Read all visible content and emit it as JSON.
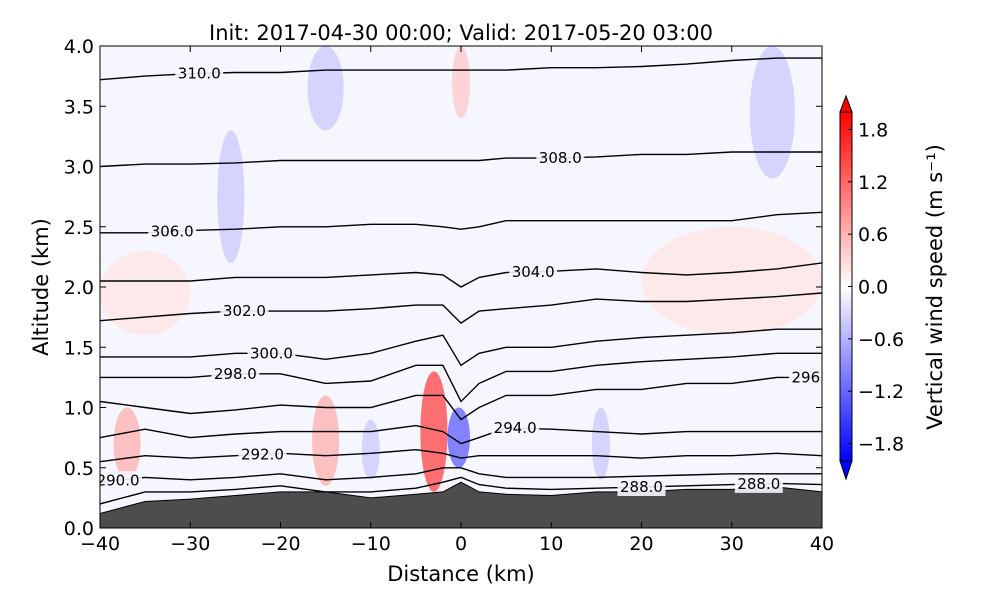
{
  "chart_data": {
    "type": "cross-section",
    "title": "Init: 2017-04-30 00:00; Valid: 2017-05-20 03:00",
    "x_label": "Distance (km)",
    "y_label": "Altitude (km)",
    "colorbar_label": "Vertical wind speed (m s⁻¹)",
    "xlim": [
      -40,
      40
    ],
    "ylim": [
      0,
      4
    ],
    "xticks": [
      {
        "value": -40,
        "label": "−40"
      },
      {
        "value": -30,
        "label": "−30"
      },
      {
        "value": -20,
        "label": "−20"
      },
      {
        "value": -10,
        "label": "−10"
      },
      0,
      10,
      20,
      30,
      40
    ],
    "yticks": [
      {
        "value": 0,
        "label": "0.0"
      },
      {
        "value": 0.5,
        "label": "0.5"
      },
      {
        "value": 1,
        "label": "1.0"
      },
      {
        "value": 1.5,
        "label": "1.5"
      },
      {
        "value": 2,
        "label": "2.0"
      },
      {
        "value": 2.5,
        "label": "2.5"
      },
      {
        "value": 3,
        "label": "3.0"
      },
      {
        "value": 3.5,
        "label": "3.5"
      },
      {
        "value": 4,
        "label": "4.0"
      }
    ],
    "clim": [
      -2,
      2
    ],
    "cticks": [
      {
        "value": 1.8,
        "label": "1.8"
      },
      {
        "value": 1.2,
        "label": "1.2"
      },
      {
        "value": 0.6,
        "label": "0.6"
      },
      {
        "value": 0,
        "label": "0.0"
      },
      {
        "value": -0.6,
        "label": "−0.6"
      },
      {
        "value": -1.2,
        "label": "−1.2"
      },
      {
        "value": -1.8,
        "label": "−1.8"
      }
    ],
    "x": [
      -40,
      -35,
      -30,
      -25,
      -20,
      -15,
      -10,
      -5,
      -2,
      0,
      2,
      5,
      10,
      15,
      20,
      25,
      30,
      35,
      40
    ],
    "terrain": {
      "color": "#4d4d4d",
      "values": [
        0.12,
        0.22,
        0.24,
        0.27,
        0.3,
        0.3,
        0.25,
        0.28,
        0.3,
        0.38,
        0.3,
        0.28,
        0.27,
        0.3,
        0.3,
        0.32,
        0.32,
        0.34,
        0.3
      ]
    },
    "isentropes": [
      {
        "level": {
          "value": 288,
          "label": "288.0"
        },
        "label_x": [
          20,
          33
        ],
        "values": [
          0.2,
          0.3,
          0.3,
          0.32,
          0.35,
          0.3,
          0.3,
          0.33,
          0.38,
          0.42,
          0.36,
          0.33,
          0.32,
          0.33,
          0.34,
          0.35,
          0.36,
          0.37,
          0.36
        ]
      },
      {
        "level": {
          "value": 290,
          "label": "290.0"
        },
        "label_x": [
          -38
        ],
        "values": [
          0.38,
          0.42,
          0.4,
          0.42,
          0.45,
          0.4,
          0.42,
          0.45,
          0.5,
          0.5,
          0.45,
          0.42,
          0.42,
          0.42,
          0.43,
          0.44,
          0.45,
          0.45,
          0.45
        ]
      },
      {
        "level": {
          "value": 292,
          "label": "292.0"
        },
        "label_x": [
          -22
        ],
        "values": [
          0.55,
          0.6,
          0.58,
          0.6,
          0.62,
          0.6,
          0.62,
          0.65,
          0.62,
          0.58,
          0.6,
          0.6,
          0.6,
          0.6,
          0.58,
          0.6,
          0.6,
          0.62,
          0.6
        ]
      },
      {
        "level": {
          "value": 294,
          "label": "294.0"
        },
        "label_x": [
          6
        ],
        "values": [
          0.75,
          0.82,
          0.75,
          0.78,
          0.8,
          0.8,
          0.8,
          0.85,
          0.8,
          0.7,
          0.75,
          0.83,
          0.82,
          0.8,
          0.78,
          0.8,
          0.8,
          0.8,
          0.8
        ]
      },
      {
        "level": {
          "value": 296,
          "label": "296.0"
        },
        "label_x": [
          39
        ],
        "values": [
          1.05,
          1.0,
          0.95,
          0.98,
          1.02,
          1.0,
          1.0,
          1.1,
          1.1,
          0.9,
          1.0,
          1.1,
          1.1,
          1.15,
          1.15,
          1.2,
          1.2,
          1.25,
          1.25
        ]
      },
      {
        "level": {
          "value": 298,
          "label": "298.0"
        },
        "label_x": [
          -25
        ],
        "values": [
          1.25,
          1.25,
          1.25,
          1.28,
          1.28,
          1.2,
          1.22,
          1.35,
          1.35,
          1.05,
          1.2,
          1.3,
          1.3,
          1.35,
          1.38,
          1.4,
          1.42,
          1.45,
          1.45
        ]
      },
      {
        "level": {
          "value": 300,
          "label": "300.0"
        },
        "label_x": [
          -21
        ],
        "values": [
          1.42,
          1.42,
          1.42,
          1.45,
          1.45,
          1.4,
          1.45,
          1.55,
          1.6,
          1.35,
          1.45,
          1.5,
          1.5,
          1.55,
          1.58,
          1.6,
          1.62,
          1.65,
          1.65
        ]
      },
      {
        "level": {
          "value": 302,
          "label": "302.0"
        },
        "label_x": [
          -24
        ],
        "values": [
          1.72,
          1.75,
          1.78,
          1.8,
          1.8,
          1.8,
          1.82,
          1.85,
          1.85,
          1.7,
          1.8,
          1.82,
          1.85,
          1.9,
          1.88,
          1.88,
          1.9,
          1.92,
          1.95
        ]
      },
      {
        "level": {
          "value": 304,
          "label": "304.0"
        },
        "label_x": [
          8
        ],
        "values": [
          2.05,
          2.05,
          2.05,
          2.08,
          2.08,
          2.08,
          2.1,
          2.12,
          2.1,
          2.0,
          2.08,
          2.12,
          2.13,
          2.15,
          2.12,
          2.1,
          2.12,
          2.15,
          2.2
        ]
      },
      {
        "level": {
          "value": 306,
          "label": "306.0"
        },
        "label_x": [
          -32
        ],
        "values": [
          2.45,
          2.45,
          2.47,
          2.48,
          2.5,
          2.5,
          2.52,
          2.52,
          2.5,
          2.48,
          2.5,
          2.55,
          2.55,
          2.55,
          2.55,
          2.55,
          2.55,
          2.6,
          2.62
        ]
      },
      {
        "level": {
          "value": 308,
          "label": "308.0"
        },
        "label_x": [
          11
        ],
        "values": [
          3.0,
          3.02,
          3.02,
          3.03,
          3.05,
          3.05,
          3.05,
          3.05,
          3.05,
          3.05,
          3.05,
          3.07,
          3.07,
          3.08,
          3.1,
          3.1,
          3.12,
          3.12,
          3.12
        ]
      },
      {
        "level": {
          "value": 310,
          "label": "310.0"
        },
        "label_x": [
          -29
        ],
        "values": [
          3.72,
          3.75,
          3.77,
          3.78,
          3.78,
          3.8,
          3.8,
          3.8,
          3.8,
          3.8,
          3.8,
          3.8,
          3.82,
          3.82,
          3.83,
          3.85,
          3.88,
          3.9,
          3.9
        ]
      }
    ],
    "shading": [
      {
        "x": [
          -4.5,
          -1.5
        ],
        "y": [
          0.3,
          1.3
        ],
        "value": 1.4
      },
      {
        "x": [
          -1.5,
          1
        ],
        "y": [
          0.5,
          1.0
        ],
        "value": -1.2
      },
      {
        "x": [
          -38.5,
          -35.5
        ],
        "y": [
          0.4,
          1.0
        ],
        "value": 0.6
      },
      {
        "x": [
          -16.5,
          -13.5
        ],
        "y": [
          0.35,
          1.1
        ],
        "value": 0.6
      },
      {
        "x": [
          -11,
          -9
        ],
        "y": [
          0.4,
          0.9
        ],
        "value": -0.4
      },
      {
        "x": [
          14.5,
          16.5
        ],
        "y": [
          0.4,
          1.0
        ],
        "value": -0.4
      },
      {
        "x": [
          -27,
          -24
        ],
        "y": [
          2.2,
          3.3
        ],
        "value": -0.4
      },
      {
        "x": [
          -17,
          -13
        ],
        "y": [
          3.3,
          4.0
        ],
        "value": -0.4
      },
      {
        "x": [
          -1,
          1
        ],
        "y": [
          3.4,
          4.0
        ],
        "value": 0.4
      },
      {
        "x": [
          32,
          37
        ],
        "y": [
          2.9,
          4.0
        ],
        "value": -0.4
      },
      {
        "x": [
          20,
          40
        ],
        "y": [
          1.6,
          2.5
        ],
        "value": 0.2
      },
      {
        "x": [
          -40,
          -30
        ],
        "y": [
          1.6,
          2.3
        ],
        "value": 0.2
      }
    ]
  }
}
